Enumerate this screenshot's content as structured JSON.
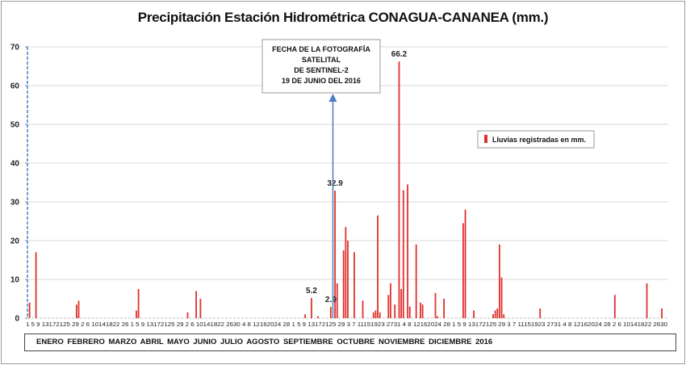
{
  "chart_data": {
    "type": "bar",
    "title": "Precipitación Estación Hidrométrica CONAGUA-CANANEA  (mm.)",
    "ylim": [
      0,
      70
    ],
    "yticks": [
      0,
      10,
      20,
      30,
      40,
      50,
      60,
      70
    ],
    "grid": true,
    "legend_position": "right",
    "series": [
      {
        "name": "Lluvias registradas en mm.",
        "color": "#e0302c",
        "points": [
          {
            "day": 1,
            "value": 4.0
          },
          {
            "day": 4,
            "value": 17.0
          },
          {
            "day": 23,
            "value": 3.5
          },
          {
            "day": 24,
            "value": 4.5
          },
          {
            "day": 51,
            "value": 2.0
          },
          {
            "day": 52,
            "value": 7.5
          },
          {
            "day": 75,
            "value": 1.5
          },
          {
            "day": 79,
            "value": 7.0
          },
          {
            "day": 81,
            "value": 5.0
          },
          {
            "day": 130,
            "value": 1.0
          },
          {
            "day": 133,
            "value": 5.2
          },
          {
            "day": 136,
            "value": 0.5
          },
          {
            "day": 142,
            "value": 2.9
          },
          {
            "day": 144,
            "value": 32.9
          },
          {
            "day": 145,
            "value": 9.0
          },
          {
            "day": 148,
            "value": 17.5
          },
          {
            "day": 149,
            "value": 23.5
          },
          {
            "day": 150,
            "value": 20.0
          },
          {
            "day": 153,
            "value": 17.0
          },
          {
            "day": 157,
            "value": 4.5
          },
          {
            "day": 162,
            "value": 1.5
          },
          {
            "day": 163,
            "value": 2.0
          },
          {
            "day": 164,
            "value": 26.5
          },
          {
            "day": 165,
            "value": 1.5
          },
          {
            "day": 169,
            "value": 6.0
          },
          {
            "day": 170,
            "value": 9.0
          },
          {
            "day": 172,
            "value": 3.5
          },
          {
            "day": 174,
            "value": 66.2
          },
          {
            "day": 175,
            "value": 7.5
          },
          {
            "day": 176,
            "value": 33.0
          },
          {
            "day": 178,
            "value": 34.5
          },
          {
            "day": 179,
            "value": 3.0
          },
          {
            "day": 182,
            "value": 19.0
          },
          {
            "day": 184,
            "value": 4.0
          },
          {
            "day": 185,
            "value": 3.5
          },
          {
            "day": 191,
            "value": 6.5
          },
          {
            "day": 192,
            "value": 0.5
          },
          {
            "day": 195,
            "value": 5.0
          },
          {
            "day": 204,
            "value": 24.5
          },
          {
            "day": 205,
            "value": 28.0
          },
          {
            "day": 209,
            "value": 2.0
          },
          {
            "day": 218,
            "value": 1.0
          },
          {
            "day": 219,
            "value": 2.0
          },
          {
            "day": 220,
            "value": 2.5
          },
          {
            "day": 221,
            "value": 19.0
          },
          {
            "day": 222,
            "value": 10.5
          },
          {
            "day": 223,
            "value": 1.0
          },
          {
            "day": 240,
            "value": 2.5
          },
          {
            "day": 275,
            "value": 6.0
          },
          {
            "day": 290,
            "value": 9.0
          },
          {
            "day": 297,
            "value": 2.5
          }
        ]
      }
    ],
    "data_labels": [
      {
        "day": 133,
        "text": "5.2"
      },
      {
        "day": 142,
        "text": "2.9"
      },
      {
        "day": 144,
        "text": "32.9"
      },
      {
        "day": 174,
        "text": "66.2"
      }
    ],
    "x_tick_labels_text": "1  5  9  13172125 29  2  6 10141822 26  1  5  9  13172125 29  2  6 10141822 2630  4  8 12162024 28  1  5  9  13172125 29  3  7  11151923 2731  4  8 12162024 28  1  5  9  13172125 29  3  7  11151923 2731  4  8 12162024 28  2  6 10141822 2630",
    "x_month_labels": "ENERO  FEBRERO  MARZO   ABRIL   MAYO  JUNIO   JULIO   AGOSTO  SEPTIEMBRE OCTUBRE  NOVIEMBRE  DICIEMBRE 2016",
    "annotation": {
      "text_lines": [
        "FECHA DE LA FOTOGRAFÍA",
        "SATELITAL",
        "DE SENTINEL-2",
        "19 DE JUNIO DEL 2016"
      ],
      "day": 143,
      "arrow_color": "#4a7fc1"
    }
  }
}
